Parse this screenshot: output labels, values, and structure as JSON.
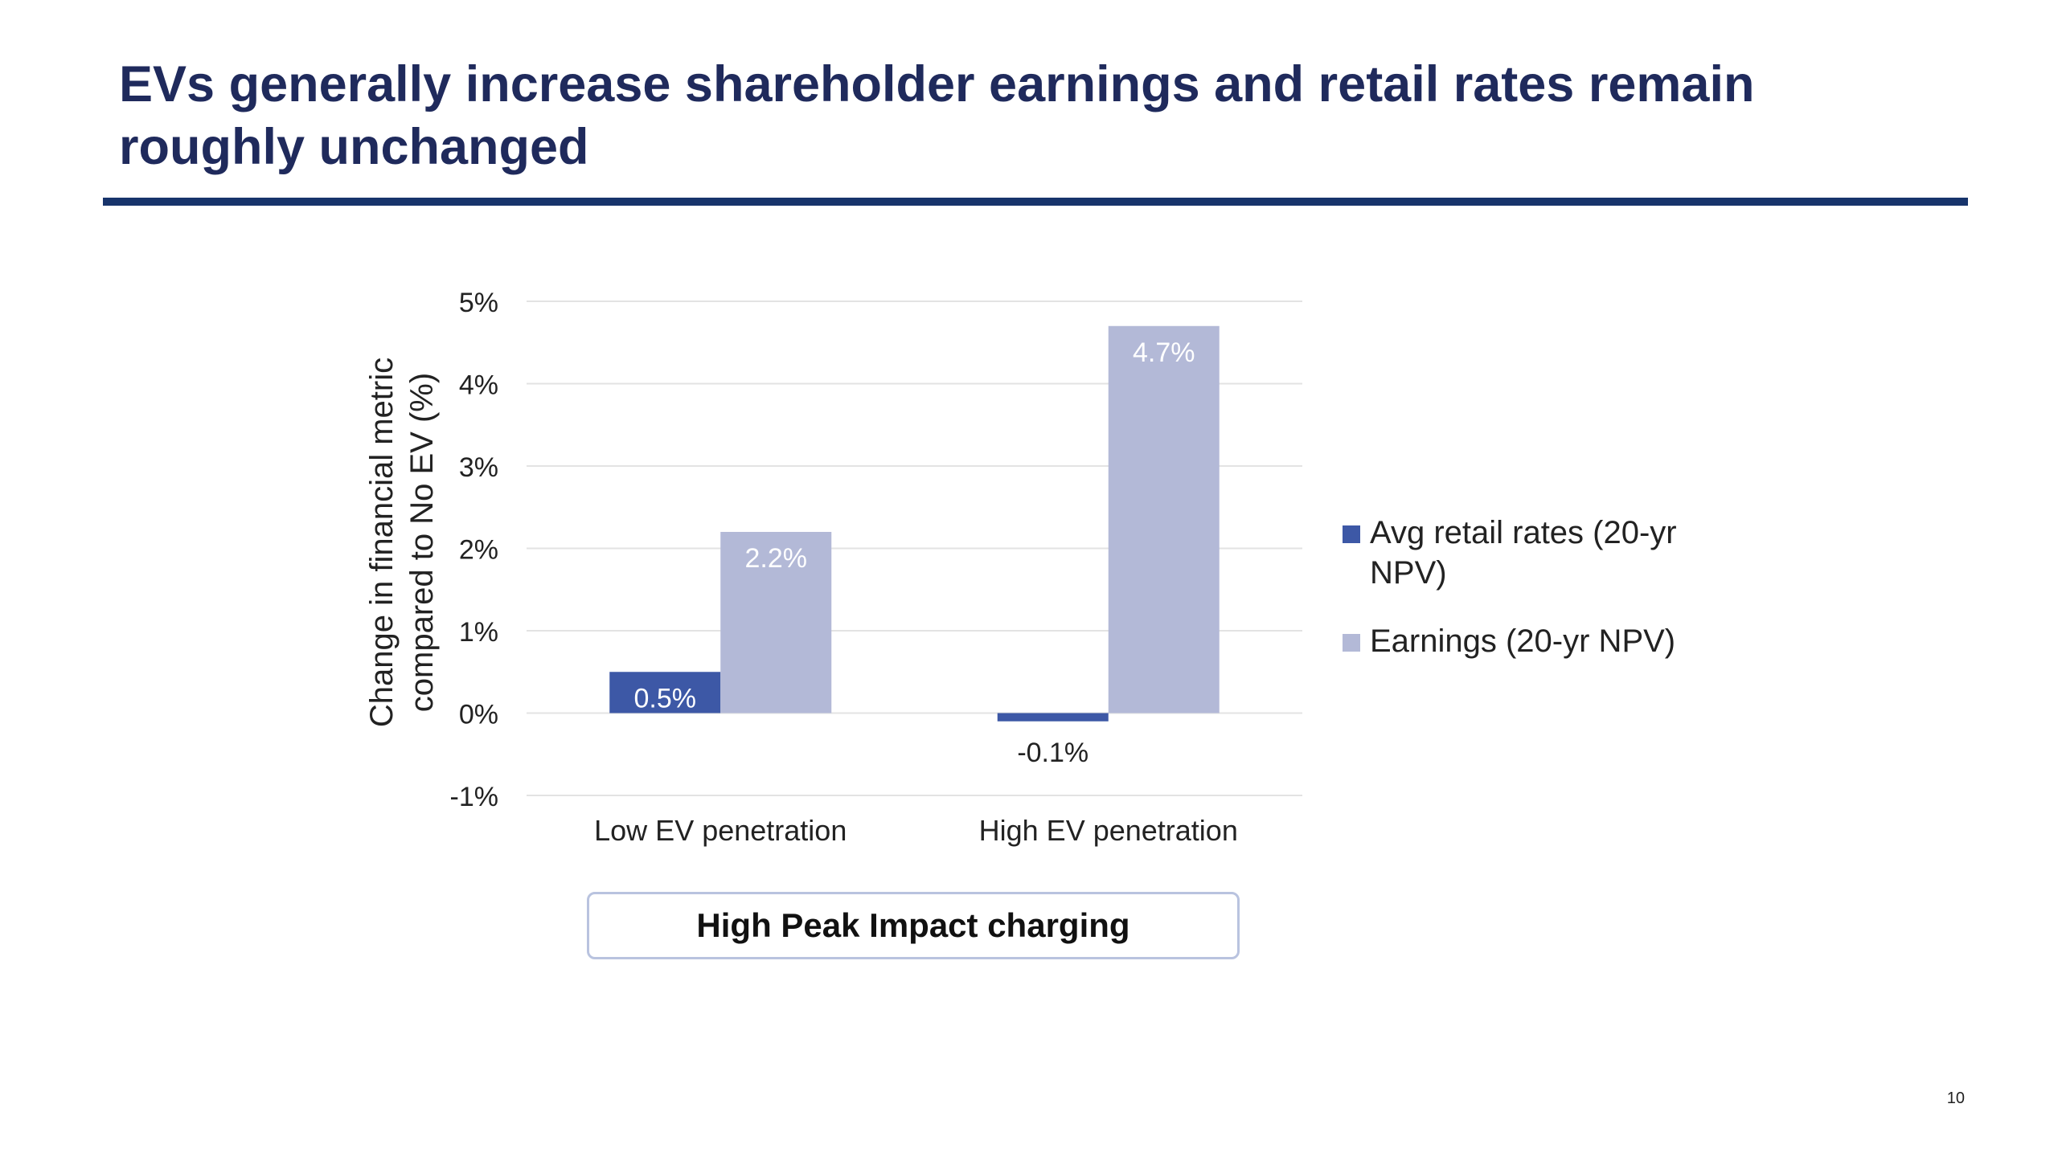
{
  "slide": {
    "title": "EVs generally increase shareholder earnings and retail rates remain\nroughly unchanged",
    "caption": "High Peak Impact charging",
    "page_number": "10"
  },
  "colors": {
    "title": "#1f2a5c",
    "rule": "#17346b",
    "series_retail": "#3d58a6",
    "series_earnings": "#b3b9d7",
    "gridline": "#e3e3e3",
    "caption_border": "#b9c3df"
  },
  "chart_data": {
    "type": "bar",
    "ylabel": "Change in financial metric compared to No EV (%)",
    "ylabel_lines": [
      "Change in financial metric",
      "compared to No EV (%)"
    ],
    "xlabel": "",
    "ylim": [
      -1,
      5
    ],
    "yticks": [
      5,
      4,
      3,
      2,
      1,
      0,
      -1
    ],
    "ytick_labels": [
      "5%",
      "4%",
      "3%",
      "2%",
      "1%",
      "0%",
      "-1%"
    ],
    "grid": true,
    "legend_position": "right",
    "categories": [
      "Low EV penetration",
      "High EV penetration"
    ],
    "series": [
      {
        "name": "Avg retail rates (20-yr NPV)",
        "legend_lines": [
          "Avg retail rates (20-yr",
          "NPV)"
        ],
        "color": "#3d58a6",
        "values": [
          0.5,
          -0.1
        ],
        "labels": [
          "0.5%",
          "-0.1%"
        ]
      },
      {
        "name": "Earnings (20-yr NPV)",
        "legend_lines": [
          "Earnings (20-yr NPV)"
        ],
        "color": "#b3b9d7",
        "values": [
          2.2,
          4.7
        ],
        "labels": [
          "2.2%",
          "4.7%"
        ]
      }
    ]
  }
}
